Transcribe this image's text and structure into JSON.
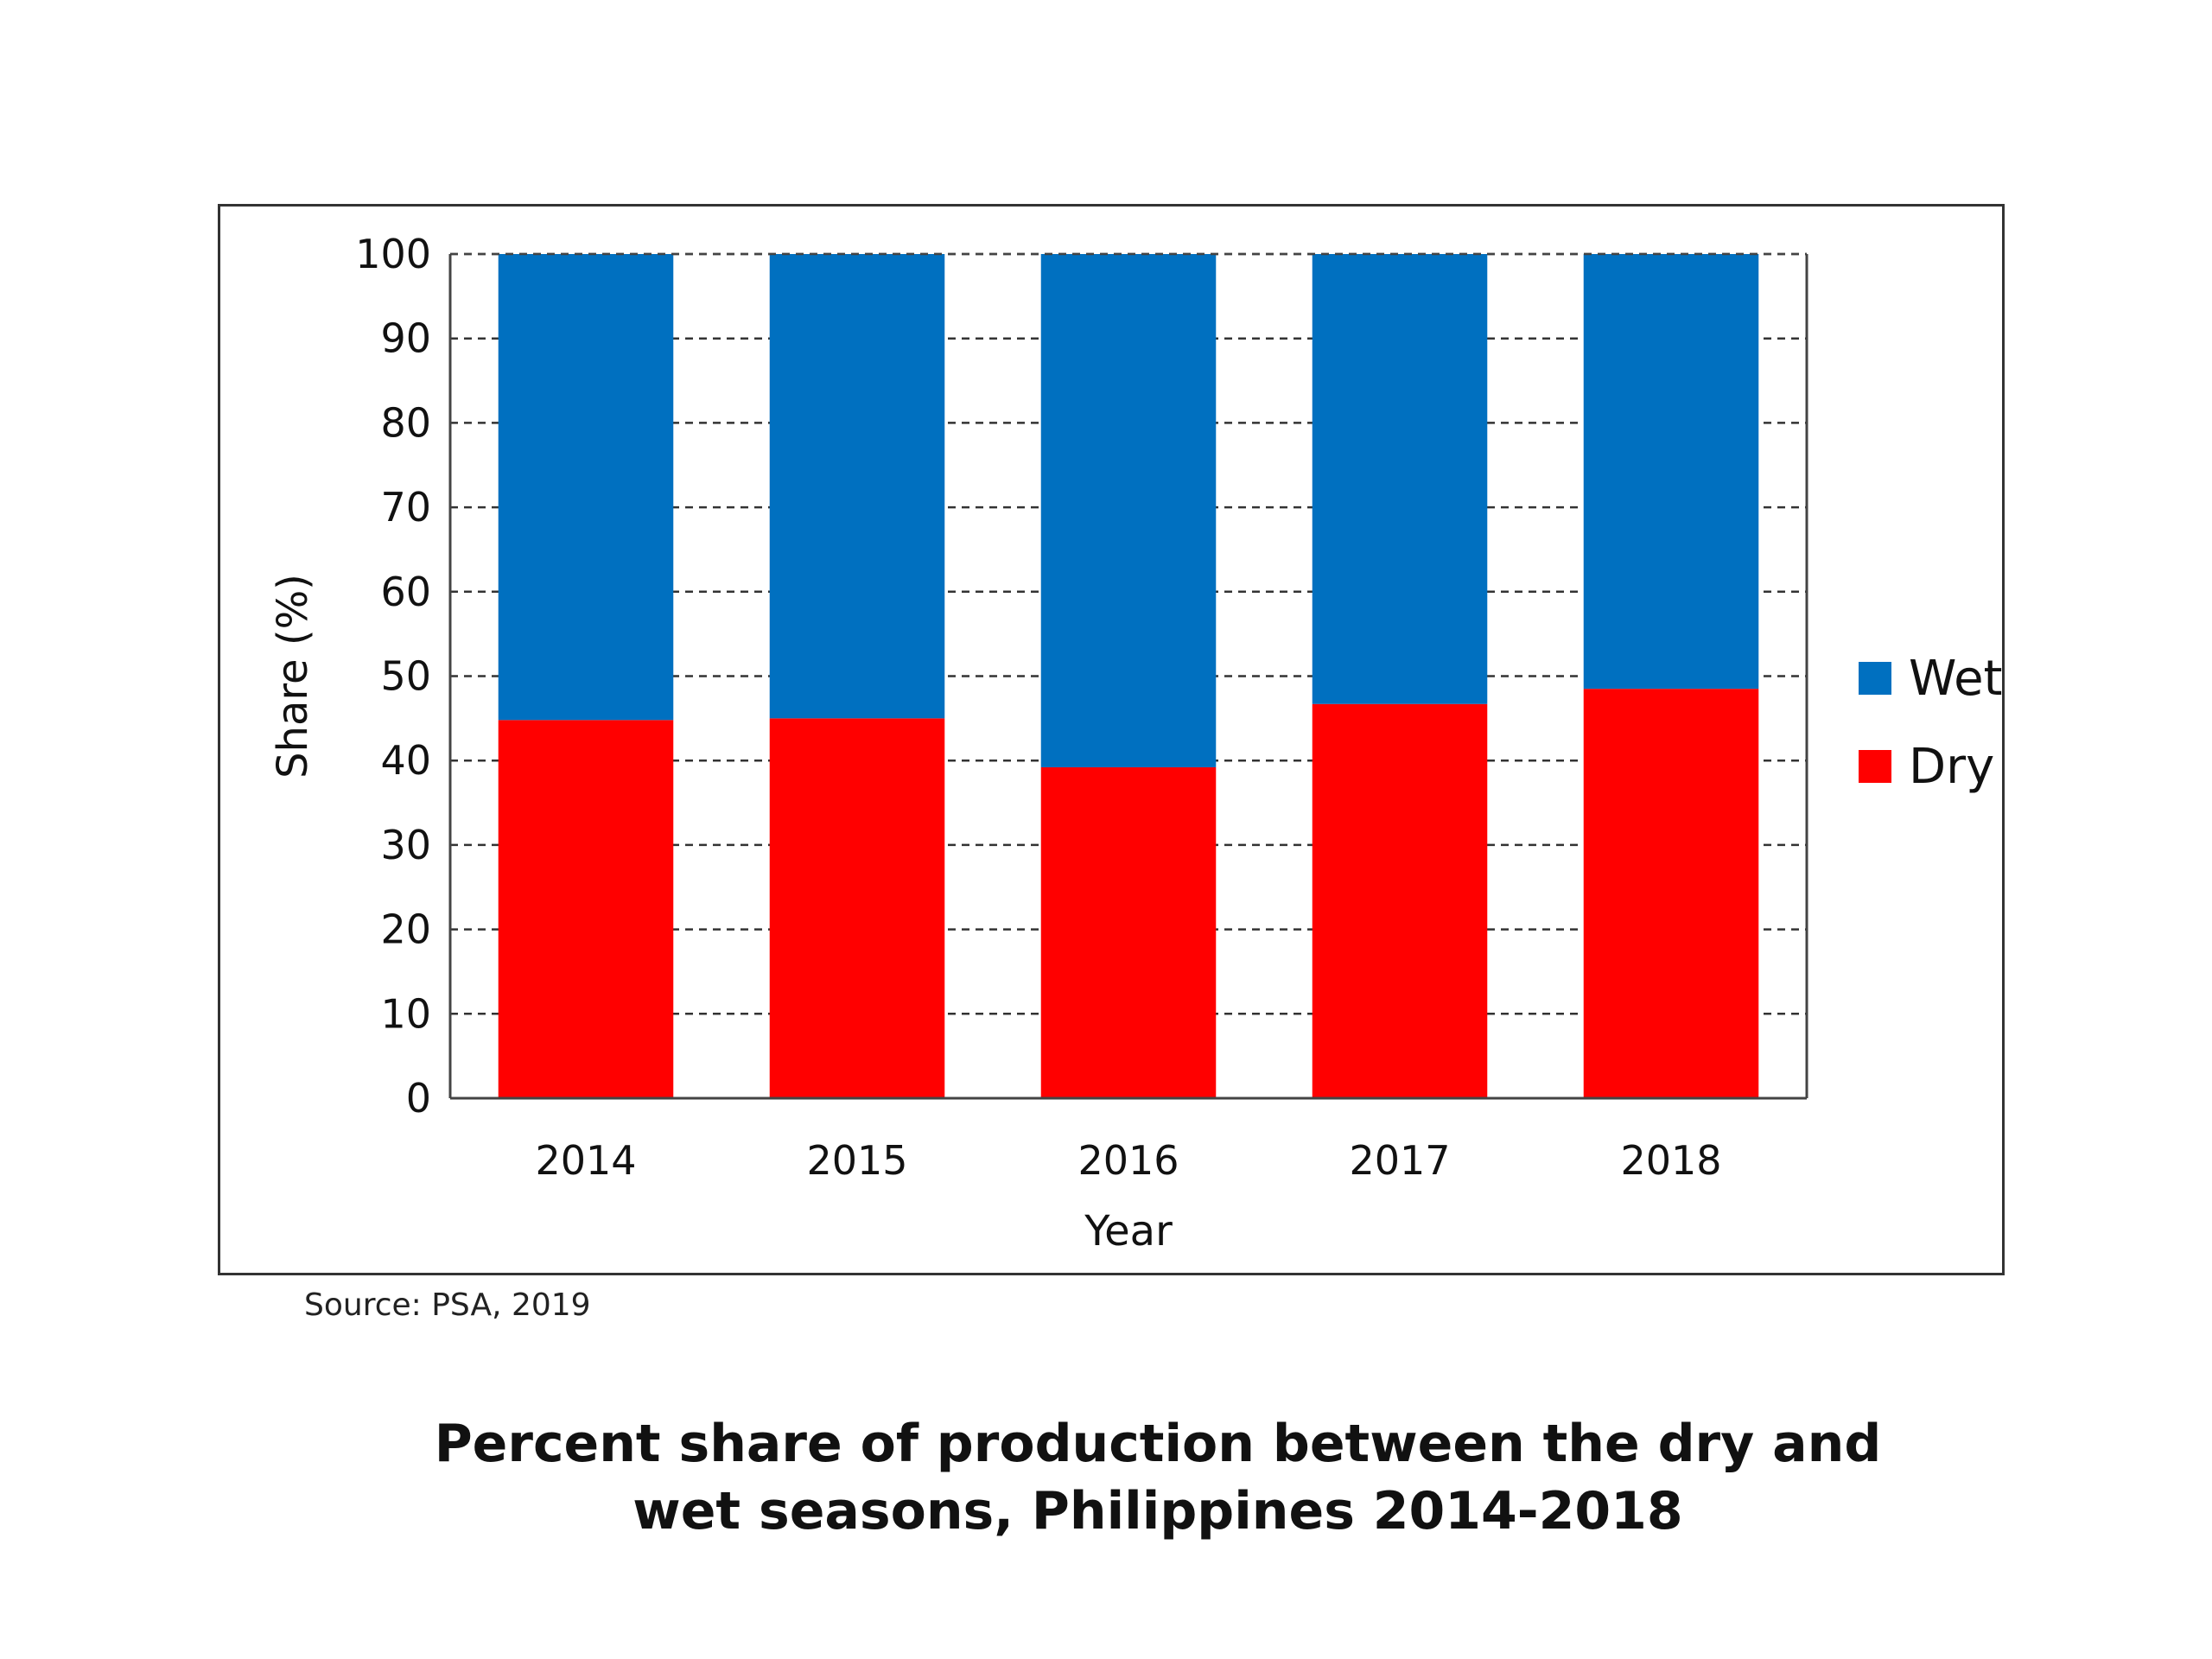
{
  "chart_data": {
    "type": "bar",
    "stacked": true,
    "categories": [
      "2014",
      "2015",
      "2016",
      "2017",
      "2018"
    ],
    "series": [
      {
        "name": "Dry",
        "values": [
          44.8,
          45.0,
          39.2,
          46.7,
          48.5
        ],
        "color": "#ff0000"
      },
      {
        "name": "Wet",
        "values": [
          55.2,
          55.0,
          60.8,
          53.3,
          51.5
        ],
        "color": "#0070c0"
      }
    ],
    "xlabel": "Year",
    "ylabel": "Share (%)",
    "ylim": [
      0,
      100
    ],
    "yticks": [
      "0",
      "10",
      "20",
      "30",
      "40",
      "50",
      "60",
      "70",
      "80",
      "90",
      "100"
    ],
    "grid": "dashed horizontal",
    "legend": {
      "position": "right",
      "entries": [
        "Wet",
        "Dry"
      ]
    }
  },
  "source": "Source: PSA, 2019",
  "caption": {
    "line1": "Percent share of production between the dry and",
    "line2": "wet seasons, Philippines 2014-2018"
  }
}
